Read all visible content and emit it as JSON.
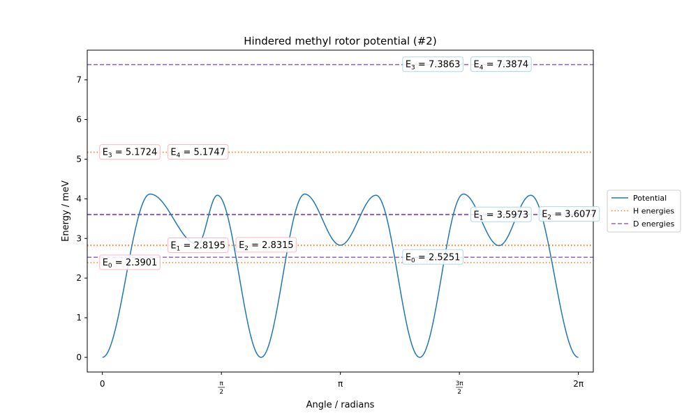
{
  "chart_data": {
    "type": "line",
    "title": "Hindered methyl rotor potential (#2)",
    "xlabel": "Angle / radians",
    "ylabel": "Energy / meV",
    "xlim": [
      -0.2,
      6.48
    ],
    "ylim": [
      -0.37,
      7.75
    ],
    "grid": false,
    "legend_position": "center-right-outside",
    "x_ticks": [
      {
        "value": 0,
        "num": "0"
      },
      {
        "value": 1.5708,
        "num": "π",
        "den": "2"
      },
      {
        "value": 3.1416,
        "num": "π"
      },
      {
        "value": 4.7124,
        "num": "3π",
        "den": "2"
      },
      {
        "value": 6.2832,
        "num": "2π"
      }
    ],
    "y_ticks": [
      0,
      1,
      2,
      3,
      4,
      5,
      6,
      7
    ],
    "potential": {
      "name": "Potential",
      "color": "#1f77b4",
      "minima": [
        {
          "x": 0.0,
          "y": 0.0
        },
        {
          "x": 1.2566,
          "y": 2.85
        },
        {
          "x": 2.0944,
          "y": 0.0
        },
        {
          "x": 3.1416,
          "y": 2.83
        },
        {
          "x": 4.1888,
          "y": 0.0
        },
        {
          "x": 5.236,
          "y": 2.82
        },
        {
          "x": 6.2832,
          "y": 0.0
        }
      ],
      "maxima": [
        {
          "x": 0.6283,
          "y": 4.12
        },
        {
          "x": 1.5184,
          "y": 4.09
        },
        {
          "x": 2.6704,
          "y": 4.12
        },
        {
          "x": 3.6128,
          "y": 4.09
        },
        {
          "x": 4.7648,
          "y": 4.12
        },
        {
          "x": 5.6549,
          "y": 4.09
        }
      ]
    },
    "series": [
      {
        "name": "H energies",
        "color": "#ff7f0e",
        "style": "dotted",
        "values": [
          2.3901,
          2.8195,
          2.8315,
          5.1724,
          5.1747
        ]
      },
      {
        "name": "D energies",
        "color": "#9467bd",
        "style": "dashed",
        "values": [
          2.5251,
          3.5973,
          3.6077,
          7.3863,
          7.3874
        ]
      }
    ],
    "annotations": [
      {
        "series": "H energies",
        "sub": "0",
        "value": "2.3901",
        "x": 0.0,
        "y": 2.3901
      },
      {
        "series": "H energies",
        "sub": "1",
        "value": "2.8195",
        "x": 0.9,
        "y": 2.8195
      },
      {
        "series": "H energies",
        "sub": "2",
        "value": "2.8315",
        "x": 1.8,
        "y": 2.8315
      },
      {
        "series": "H energies",
        "sub": "3",
        "value": "5.1724",
        "x": 0.0,
        "y": 5.1724
      },
      {
        "series": "H energies",
        "sub": "4",
        "value": "5.1747",
        "x": 0.9,
        "y": 5.1747
      },
      {
        "series": "D energies",
        "sub": "0",
        "value": "2.5251",
        "x": 4.0,
        "y": 2.5251
      },
      {
        "series": "D energies",
        "sub": "1",
        "value": "3.5973",
        "x": 4.9,
        "y": 3.5973
      },
      {
        "series": "D energies",
        "sub": "2",
        "value": "3.6077",
        "x": 5.8,
        "y": 3.6077
      },
      {
        "series": "D energies",
        "sub": "3",
        "value": "7.3863",
        "x": 4.0,
        "y": 7.3863
      },
      {
        "series": "D energies",
        "sub": "4",
        "value": "7.3874",
        "x": 4.9,
        "y": 7.3874
      }
    ],
    "legend": [
      {
        "label": "Potential",
        "color": "#1f77b4",
        "style": "solid"
      },
      {
        "label": "H energies",
        "color": "#ff7f0e",
        "style": "dotted"
      },
      {
        "label": "D energies",
        "color": "#9467bd",
        "style": "dashed"
      }
    ]
  }
}
